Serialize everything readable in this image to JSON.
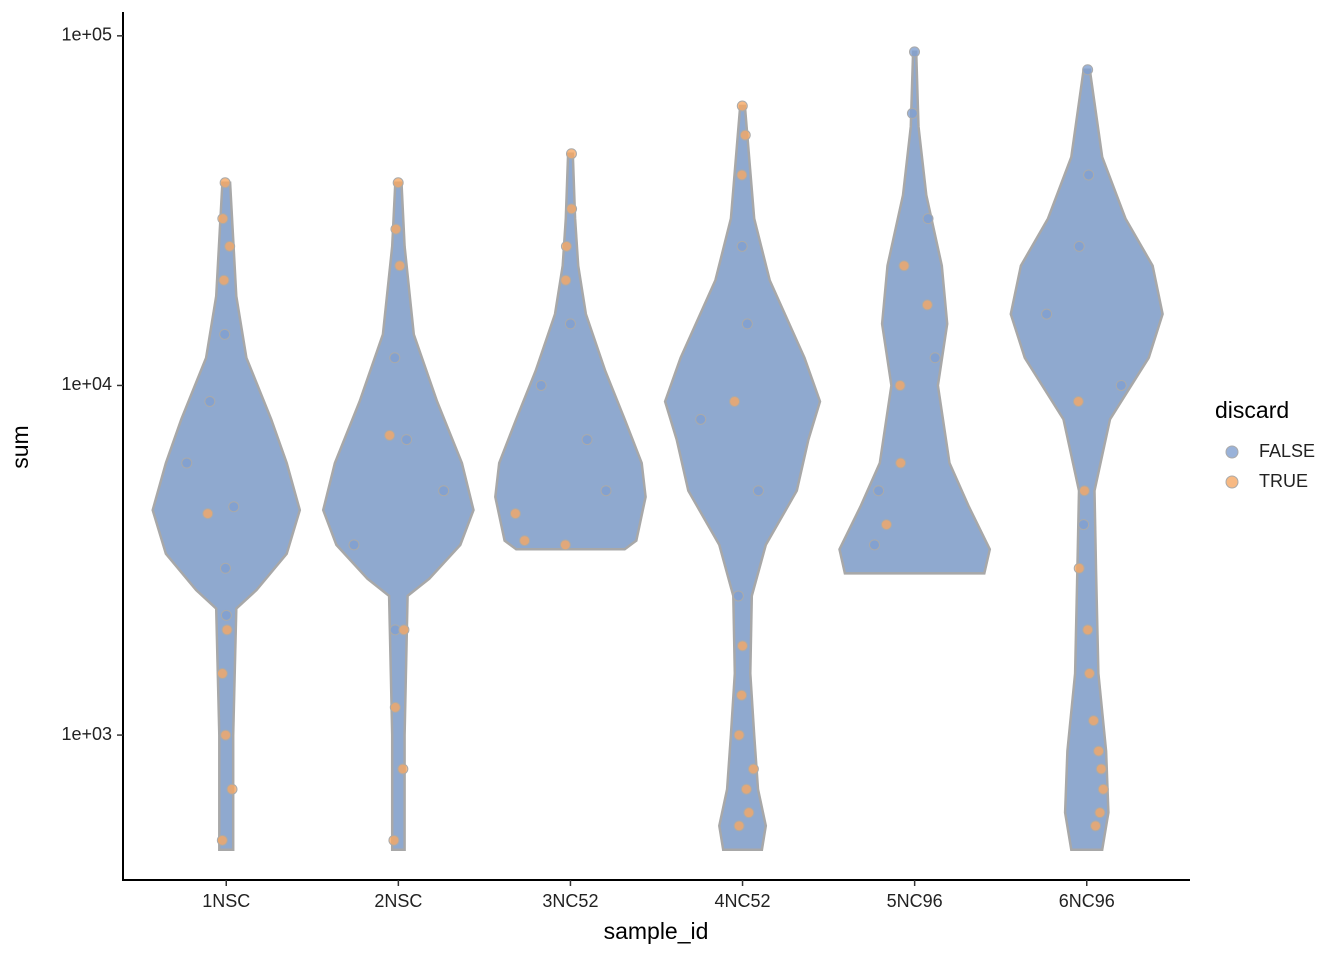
{
  "chart_data": {
    "type": "violin",
    "x_label": "sample_id",
    "y_label": "sum",
    "categories": [
      "1NSC",
      "2NSC",
      "3NC52",
      "4NC52",
      "5NC96",
      "6NC96"
    ],
    "log_y": true,
    "ylim": [
      385,
      117000
    ],
    "yticks": [
      {
        "value": 1000,
        "label": "1e+03"
      },
      {
        "value": 10000,
        "label": "1e+04"
      },
      {
        "value": 100000,
        "label": "1e+05"
      }
    ],
    "violins": [
      {
        "levels": [
          470,
          1000,
          2300,
          2600,
          3300,
          4400,
          6000,
          8000,
          12000,
          18000,
          38000
        ],
        "density": [
          0.09,
          0.09,
          0.13,
          0.39,
          0.78,
          0.95,
          0.78,
          0.58,
          0.26,
          0.13,
          0.05
        ]
      },
      {
        "levels": [
          470,
          1000,
          2500,
          2800,
          3500,
          4400,
          6000,
          9000,
          14000,
          25000,
          38000
        ],
        "density": [
          0.08,
          0.08,
          0.12,
          0.4,
          0.8,
          0.97,
          0.82,
          0.5,
          0.2,
          0.08,
          0.04
        ]
      },
      {
        "levels": [
          3400,
          3600,
          4800,
          6000,
          8000,
          11000,
          16000,
          22000,
          30000,
          46000
        ],
        "density": [
          0.7,
          0.85,
          0.97,
          0.92,
          0.7,
          0.45,
          0.2,
          0.1,
          0.06,
          0.03
        ]
      },
      {
        "levels": [
          470,
          550,
          700,
          1000,
          1500,
          2500,
          3500,
          5000,
          7000,
          9000,
          12000,
          20000,
          30000,
          63000
        ],
        "density": [
          0.25,
          0.3,
          0.2,
          0.15,
          0.1,
          0.12,
          0.3,
          0.7,
          0.85,
          1.0,
          0.8,
          0.35,
          0.15,
          0.03
        ]
      },
      {
        "levels": [
          2900,
          3400,
          4500,
          6000,
          10000,
          15000,
          22000,
          35000,
          55000,
          90000
        ],
        "density": [
          0.9,
          0.97,
          0.7,
          0.45,
          0.3,
          0.42,
          0.35,
          0.15,
          0.05,
          0.02
        ]
      },
      {
        "levels": [
          470,
          600,
          900,
          1500,
          3000,
          5000,
          8000,
          12000,
          16000,
          22000,
          30000,
          45000,
          80000
        ],
        "density": [
          0.2,
          0.28,
          0.25,
          0.15,
          0.12,
          0.1,
          0.3,
          0.8,
          0.98,
          0.85,
          0.5,
          0.2,
          0.04
        ]
      }
    ],
    "legend_title": "discard",
    "series": [
      {
        "name": "FALSE",
        "color": "#7f9fcf",
        "x": [
          "1NSC",
          "1NSC",
          "1NSC",
          "1NSC",
          "1NSC",
          "1NSC",
          "2NSC",
          "2NSC",
          "2NSC",
          "2NSC",
          "2NSC",
          "3NC52",
          "3NC52",
          "3NC52",
          "3NC52",
          "4NC52",
          "4NC52",
          "4NC52",
          "4NC52",
          "4NC52",
          "5NC96",
          "5NC96",
          "5NC96",
          "5NC96",
          "5NC96",
          "5NC96",
          "6NC96",
          "6NC96",
          "6NC96",
          "6NC96",
          "6NC96",
          "6NC96"
        ],
        "values": [
          3000,
          4500,
          6000,
          9000,
          14000,
          2200,
          3500,
          5000,
          7000,
          12000,
          2000,
          5000,
          7000,
          10000,
          15000,
          2500,
          5000,
          8000,
          15000,
          25000,
          3500,
          5000,
          12000,
          30000,
          60000,
          90000,
          10000,
          16000,
          25000,
          40000,
          80000,
          4000
        ]
      },
      {
        "name": "TRUE",
        "color": "#f5a864",
        "x": [
          "1NSC",
          "1NSC",
          "1NSC",
          "1NSC",
          "1NSC",
          "1NSC",
          "1NSC",
          "1NSC",
          "1NSC",
          "1NSC",
          "2NSC",
          "2NSC",
          "2NSC",
          "2NSC",
          "2NSC",
          "2NSC",
          "2NSC",
          "2NSC",
          "3NC52",
          "3NC52",
          "3NC52",
          "3NC52",
          "3NC52",
          "3NC52",
          "3NC52",
          "4NC52",
          "4NC52",
          "4NC52",
          "4NC52",
          "4NC52",
          "4NC52",
          "4NC52",
          "4NC52",
          "4NC52",
          "4NC52",
          "4NC52",
          "5NC96",
          "5NC96",
          "5NC96",
          "5NC96",
          "5NC96",
          "6NC96",
          "6NC96",
          "6NC96",
          "6NC96",
          "6NC96",
          "6NC96",
          "6NC96",
          "6NC96",
          "6NC96",
          "6NC96",
          "6NC96"
        ],
        "values": [
          500,
          700,
          1000,
          1500,
          2000,
          38000,
          30000,
          25000,
          20000,
          4300,
          500,
          800,
          1200,
          2000,
          38000,
          28000,
          22000,
          7200,
          46000,
          32000,
          25000,
          20000,
          3500,
          3600,
          4300,
          550,
          600,
          700,
          800,
          1000,
          1300,
          1800,
          63000,
          52000,
          40000,
          9000,
          6000,
          4000,
          17000,
          10000,
          22000,
          550,
          600,
          700,
          800,
          900,
          1100,
          1500,
          2000,
          3000,
          5000,
          9000
        ]
      }
    ]
  }
}
